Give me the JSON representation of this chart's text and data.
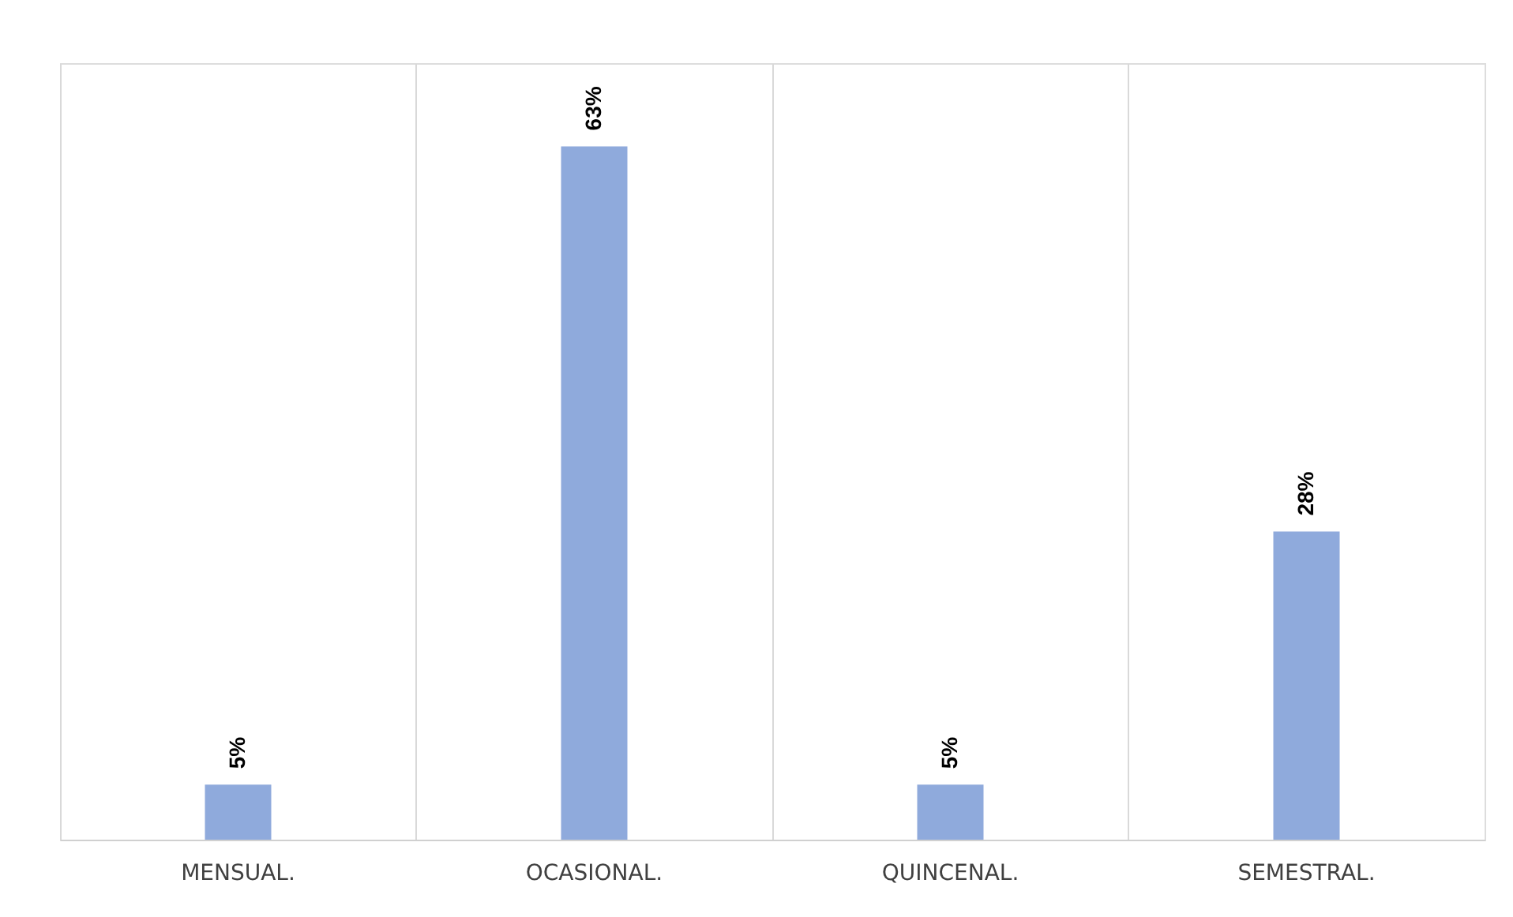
{
  "chart_data": {
    "type": "bar",
    "categories": [
      "MENSUAL.",
      "OCASIONAL.",
      "QUINCENAL.",
      "SEMESTRAL."
    ],
    "values": [
      5,
      63,
      5,
      28
    ],
    "color": "#8faadc",
    "data_labels": true,
    "value_labels": [
      "5%",
      "63%",
      "5%",
      "28%"
    ],
    "grid": "x"
  }
}
